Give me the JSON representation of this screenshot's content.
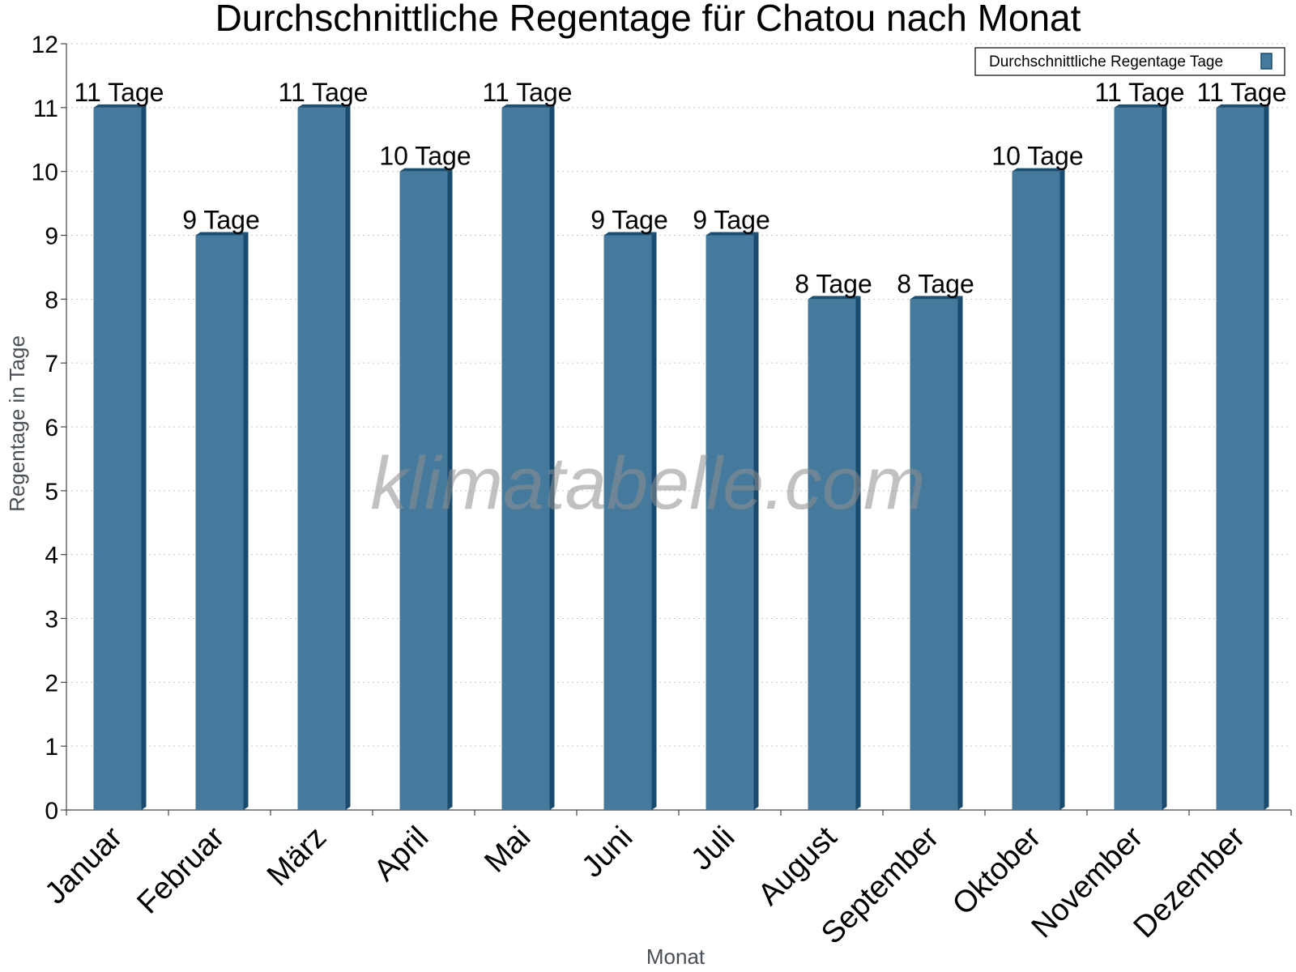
{
  "colors": {
    "bar_front": "#457a9c",
    "bar_side": "#1a4b6e",
    "bar_top": "#1d4f72",
    "grid": "#c8c8c8",
    "axis": "#444444"
  },
  "watermark": "klimatabelle.com",
  "chart_data": {
    "type": "bar",
    "title": "Durchschnittliche Regentage für Chatou nach Monat",
    "xlabel": "Monat",
    "ylabel": "Regentage in Tage",
    "ylim": [
      0,
      12
    ],
    "yticks": [
      "0",
      "1",
      "2",
      "3",
      "4",
      "5",
      "6",
      "7",
      "8",
      "9",
      "10",
      "11",
      "12"
    ],
    "grid": true,
    "legend": {
      "position": "top-right",
      "entries": [
        "Durchschnittliche Regentage Tage"
      ]
    },
    "categories": [
      "Januar",
      "Februar",
      "März",
      "April",
      "Mai",
      "Juni",
      "Juli",
      "August",
      "September",
      "Oktober",
      "November",
      "Dezember"
    ],
    "series": [
      {
        "name": "Durchschnittliche Regentage Tage",
        "values": [
          11,
          9,
          11,
          10,
          11,
          9,
          9,
          8,
          8,
          10,
          11,
          11
        ],
        "labels": [
          "11 Tage",
          "9 Tage",
          "11 Tage",
          "10 Tage",
          "11 Tage",
          "9 Tage",
          "9 Tage",
          "8 Tage",
          "8 Tage",
          "10 Tage",
          "11 Tage",
          "11 Tage"
        ]
      }
    ]
  }
}
